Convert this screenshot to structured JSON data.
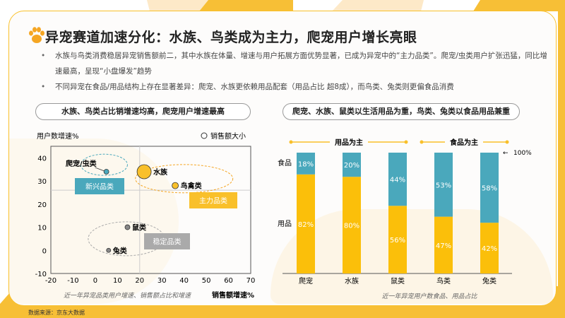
{
  "title": "异宠赛道加速分化：水族、鸟类成为主力，爬宠用户增长亮眼",
  "bullets": [
    "水族与鸟类消费稳居异宠销售额前二，其中水族在体量、增速与用户拓展方面优势显著，已成为异宠中的“主力品类”。爬宠/虫类用户扩张迅猛，同比增速最高，呈现“小盘爆发”趋势",
    "不同异宠在食品/用品结构上存在显著差异：爬宠、水族更依赖用品配套（用品占比 超8成），而鸟类、兔类则更偏食品消费"
  ],
  "footer": "数据来源：京东大数据",
  "colors": {
    "accent": "#f9c02a",
    "orange": "#f5a623",
    "teal": "#4aa8bc",
    "gray": "#999999"
  },
  "chart_data": [
    {
      "type": "scatter",
      "header": "水族、鸟类占比销增速均高，爬宠用户增速最高",
      "ylabel": "用户数增速%",
      "xlabel": "销售额增速%",
      "legend": "销售额大小",
      "caption": "近一年异宠品类用户增速、销售额占比和增速",
      "xlim": [
        -20,
        70
      ],
      "ylim": [
        -10,
        45
      ],
      "xticks": [
        -20,
        -10,
        0,
        10,
        20,
        30,
        40,
        50,
        60,
        70
      ],
      "yticks": [
        -10,
        0,
        10,
        20,
        30,
        40
      ],
      "reference_lines": {
        "x": 20,
        "y": 26
      },
      "points": [
        {
          "name": "爬宠/虫类",
          "x": 5,
          "y": 34,
          "size": "small",
          "color": "#4aa8bc"
        },
        {
          "name": "水族",
          "x": 22,
          "y": 34,
          "size": "large",
          "color": "#f9c02a"
        },
        {
          "name": "鸟禽类",
          "x": 36,
          "y": 28,
          "size": "medium",
          "color": "#f9c02a"
        },
        {
          "name": "鼠类",
          "x": 14.5,
          "y": 10,
          "size": "small",
          "color": "#888888"
        },
        {
          "name": "兔类",
          "x": 6,
          "y": 0,
          "size": "tiny",
          "color": "#888888"
        }
      ],
      "groups": [
        {
          "label": "新兴品类",
          "color": "#4aa8bc"
        },
        {
          "label": "主力品类",
          "color": "#f9c02a"
        },
        {
          "label": "稳定品类",
          "color": "#aaaaaa"
        }
      ]
    },
    {
      "type": "bar",
      "stacked": true,
      "header": "爬宠、水族、鼠类以生活用品为重，鸟类、兔类以食品用品兼重",
      "caption": "近一年异宠用户数食品、用品占比",
      "categories": [
        "爬宠",
        "水族",
        "鼠类",
        "鸟类",
        "兔类"
      ],
      "series": [
        {
          "name": "用品",
          "color": "#fbbf0a",
          "values": [
            82,
            80,
            56,
            47,
            42
          ]
        },
        {
          "name": "食品",
          "color": "#4aa8bc",
          "values": [
            18,
            20,
            44,
            53,
            58
          ]
        }
      ],
      "group_labels": [
        "用品为主",
        "食品为主"
      ],
      "total_label": "100%"
    }
  ]
}
